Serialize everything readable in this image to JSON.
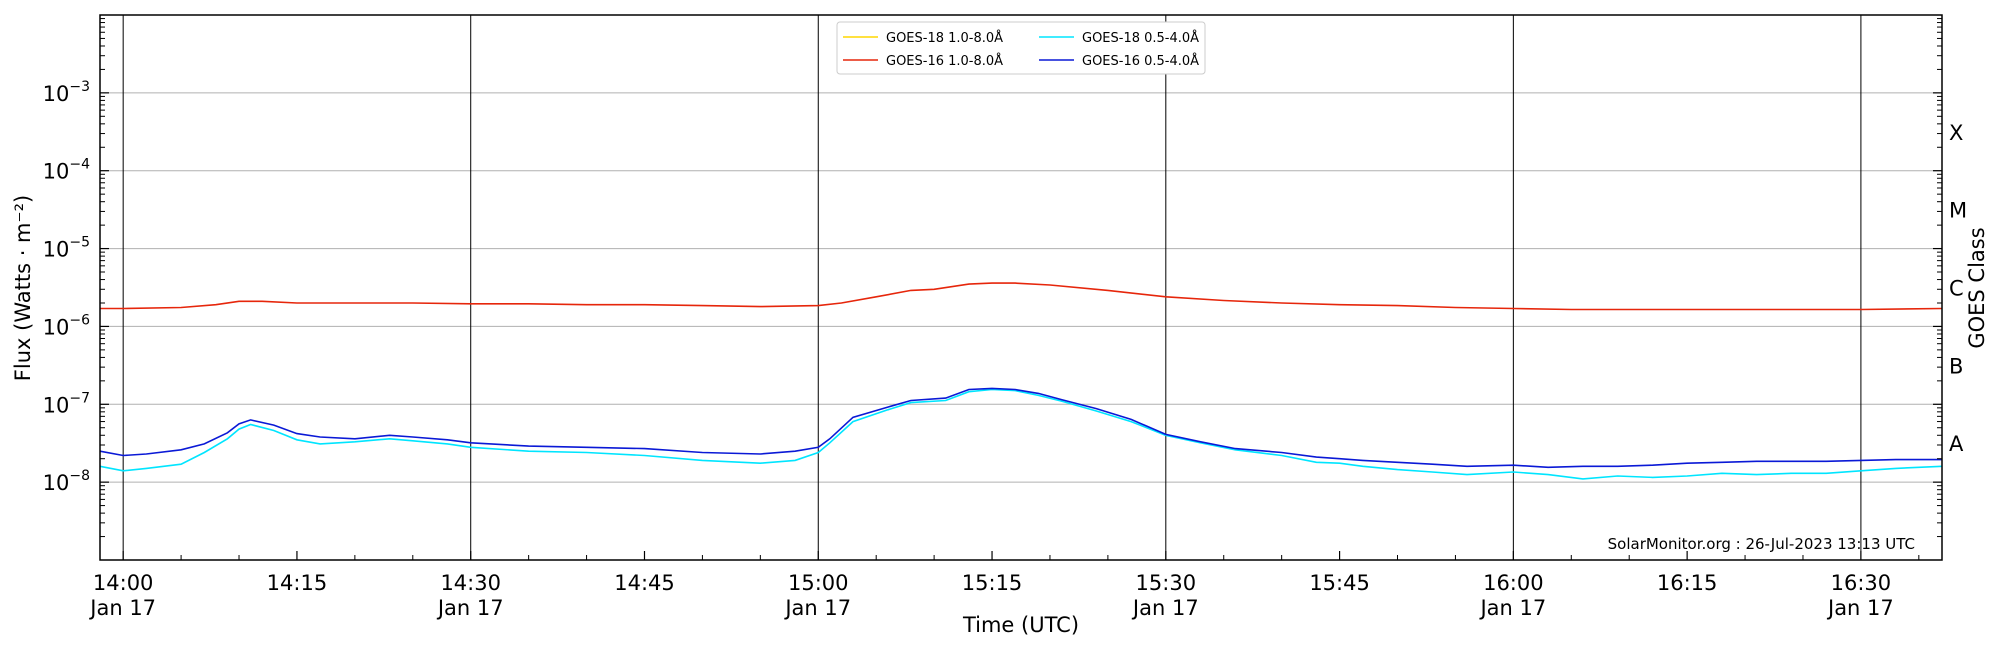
{
  "chart_data": {
    "type": "line",
    "xlabel": "Time (UTC)",
    "ylabel": "Flux (Watts · m⁻²)",
    "y2label": "GOES Class",
    "yscale": "log",
    "ylim": [
      1e-09,
      0.01
    ],
    "xlim": [
      "13:58",
      "16:37"
    ],
    "grid": "horizontal at decades",
    "legend_position": "top-center",
    "credit": "SolarMonitor.org : 26-Jul-2023 13:13 UTC",
    "x_ticks": [
      {
        "time": "14:00",
        "line1": "14:00",
        "line2": "Jan 17"
      },
      {
        "time": "14:15",
        "line1": "14:15",
        "line2": ""
      },
      {
        "time": "14:30",
        "line1": "14:30",
        "line2": "Jan 17"
      },
      {
        "time": "14:45",
        "line1": "14:45",
        "line2": ""
      },
      {
        "time": "15:00",
        "line1": "15:00",
        "line2": "Jan 17"
      },
      {
        "time": "15:15",
        "line1": "15:15",
        "line2": ""
      },
      {
        "time": "15:30",
        "line1": "15:30",
        "line2": "Jan 17"
      },
      {
        "time": "15:45",
        "line1": "15:45",
        "line2": ""
      },
      {
        "time": "16:00",
        "line1": "16:00",
        "line2": "Jan 17"
      },
      {
        "time": "16:15",
        "line1": "16:15",
        "line2": ""
      },
      {
        "time": "16:30",
        "line1": "16:30",
        "line2": "Jan 17"
      }
    ],
    "vertical_lines": [
      "14:00",
      "14:30",
      "15:00",
      "15:30",
      "16:00",
      "16:30"
    ],
    "y_ticks": [
      {
        "value": 1e-08,
        "mantissa": "10",
        "exp": "−8"
      },
      {
        "value": 1e-07,
        "mantissa": "10",
        "exp": "−7"
      },
      {
        "value": 1e-06,
        "mantissa": "10",
        "exp": "−6"
      },
      {
        "value": 1e-05,
        "mantissa": "10",
        "exp": "−5"
      },
      {
        "value": 0.0001,
        "mantissa": "10",
        "exp": "−4"
      },
      {
        "value": 0.001,
        "mantissa": "10",
        "exp": "−3"
      }
    ],
    "goes_classes": [
      {
        "label": "A",
        "value": 1e-08
      },
      {
        "label": "B",
        "value": 1e-07
      },
      {
        "label": "C",
        "value": 1e-06
      },
      {
        "label": "M",
        "value": 1e-05
      },
      {
        "label": "X",
        "value": 0.0001
      }
    ],
    "series": [
      {
        "name": "GOES-18 1.0-8.0Å",
        "color": "#FFD700",
        "x": [],
        "y": []
      },
      {
        "name": "GOES-16 1.0-8.0Å",
        "color": "#E6260B",
        "x": [
          "13:58",
          "14:00",
          "14:05",
          "14:08",
          "14:10",
          "14:12",
          "14:15",
          "14:20",
          "14:25",
          "14:30",
          "14:35",
          "14:40",
          "14:45",
          "14:50",
          "14:55",
          "15:00",
          "15:02",
          "15:05",
          "15:08",
          "15:10",
          "15:13",
          "15:15",
          "15:17",
          "15:20",
          "15:25",
          "15:30",
          "15:35",
          "15:40",
          "15:45",
          "15:50",
          "15:55",
          "16:00",
          "16:05",
          "16:10",
          "16:15",
          "16:20",
          "16:25",
          "16:30",
          "16:37"
        ],
        "y": [
          1.7e-06,
          1.7e-06,
          1.75e-06,
          1.9e-06,
          2.1e-06,
          2.1e-06,
          2e-06,
          2e-06,
          2e-06,
          1.95e-06,
          1.95e-06,
          1.9e-06,
          1.9e-06,
          1.85e-06,
          1.8e-06,
          1.85e-06,
          2e-06,
          2.4e-06,
          2.9e-06,
          3e-06,
          3.5e-06,
          3.6e-06,
          3.6e-06,
          3.4e-06,
          2.9e-06,
          2.4e-06,
          2.15e-06,
          2e-06,
          1.9e-06,
          1.85e-06,
          1.75e-06,
          1.7e-06,
          1.65e-06,
          1.65e-06,
          1.65e-06,
          1.65e-06,
          1.65e-06,
          1.65e-06,
          1.7e-06
        ]
      },
      {
        "name": "GOES-18 0.5-4.0Å",
        "color": "#00E5FF",
        "x": [
          "13:58",
          "14:00",
          "14:02",
          "14:05",
          "14:07",
          "14:09",
          "14:10",
          "14:11",
          "14:13",
          "14:15",
          "14:17",
          "14:20",
          "14:23",
          "14:25",
          "14:28",
          "14:30",
          "14:35",
          "14:40",
          "14:45",
          "14:50",
          "14:55",
          "14:58",
          "15:00",
          "15:01",
          "15:03",
          "15:06",
          "15:08",
          "15:11",
          "15:13",
          "15:15",
          "15:17",
          "15:19",
          "15:21",
          "15:24",
          "15:27",
          "15:30",
          "15:33",
          "15:36",
          "15:40",
          "15:43",
          "15:45",
          "15:47",
          "15:50",
          "15:53",
          "15:56",
          "16:00",
          "16:03",
          "16:06",
          "16:09",
          "16:12",
          "16:15",
          "16:18",
          "16:21",
          "16:24",
          "16:27",
          "16:30",
          "16:33",
          "16:37"
        ],
        "y": [
          1.6e-08,
          1.4e-08,
          1.5e-08,
          1.7e-08,
          2.4e-08,
          3.6e-08,
          4.8e-08,
          5.5e-08,
          4.6e-08,
          3.5e-08,
          3.1e-08,
          3.3e-08,
          3.6e-08,
          3.4e-08,
          3.1e-08,
          2.8e-08,
          2.5e-08,
          2.4e-08,
          2.2e-08,
          1.9e-08,
          1.75e-08,
          1.9e-08,
          2.4e-08,
          3.2e-08,
          6e-08,
          8.5e-08,
          1.05e-07,
          1.12e-07,
          1.45e-07,
          1.55e-07,
          1.5e-07,
          1.3e-07,
          1.1e-07,
          8.2e-08,
          6e-08,
          4e-08,
          3.2e-08,
          2.6e-08,
          2.2e-08,
          1.8e-08,
          1.75e-08,
          1.6e-08,
          1.45e-08,
          1.35e-08,
          1.25e-08,
          1.35e-08,
          1.25e-08,
          1.1e-08,
          1.2e-08,
          1.15e-08,
          1.2e-08,
          1.3e-08,
          1.25e-08,
          1.3e-08,
          1.3e-08,
          1.4e-08,
          1.5e-08,
          1.6e-08
        ]
      },
      {
        "name": "GOES-16 0.5-4.0Å",
        "color": "#0A19D6",
        "x": [
          "13:58",
          "14:00",
          "14:02",
          "14:05",
          "14:07",
          "14:09",
          "14:10",
          "14:11",
          "14:13",
          "14:15",
          "14:17",
          "14:20",
          "14:23",
          "14:25",
          "14:28",
          "14:30",
          "14:35",
          "14:40",
          "14:45",
          "14:50",
          "14:55",
          "14:58",
          "15:00",
          "15:01",
          "15:03",
          "15:06",
          "15:08",
          "15:11",
          "15:13",
          "15:15",
          "15:17",
          "15:19",
          "15:21",
          "15:24",
          "15:27",
          "15:30",
          "15:33",
          "15:36",
          "15:40",
          "15:43",
          "15:45",
          "15:47",
          "15:50",
          "15:53",
          "15:56",
          "16:00",
          "16:03",
          "16:06",
          "16:09",
          "16:12",
          "16:15",
          "16:18",
          "16:21",
          "16:24",
          "16:27",
          "16:30",
          "16:33",
          "16:37"
        ],
        "y": [
          2.5e-08,
          2.2e-08,
          2.3e-08,
          2.6e-08,
          3.1e-08,
          4.3e-08,
          5.6e-08,
          6.3e-08,
          5.4e-08,
          4.2e-08,
          3.8e-08,
          3.6e-08,
          4e-08,
          3.8e-08,
          3.5e-08,
          3.2e-08,
          2.9e-08,
          2.8e-08,
          2.7e-08,
          2.4e-08,
          2.3e-08,
          2.5e-08,
          2.8e-08,
          3.6e-08,
          6.8e-08,
          9.2e-08,
          1.12e-07,
          1.2e-07,
          1.55e-07,
          1.6e-07,
          1.55e-07,
          1.38e-07,
          1.15e-07,
          8.8e-08,
          6.4e-08,
          4.1e-08,
          3.3e-08,
          2.7e-08,
          2.4e-08,
          2.1e-08,
          2e-08,
          1.9e-08,
          1.8e-08,
          1.7e-08,
          1.6e-08,
          1.65e-08,
          1.55e-08,
          1.6e-08,
          1.6e-08,
          1.65e-08,
          1.75e-08,
          1.8e-08,
          1.85e-08,
          1.85e-08,
          1.85e-08,
          1.9e-08,
          1.95e-08,
          1.95e-08
        ]
      }
    ]
  }
}
